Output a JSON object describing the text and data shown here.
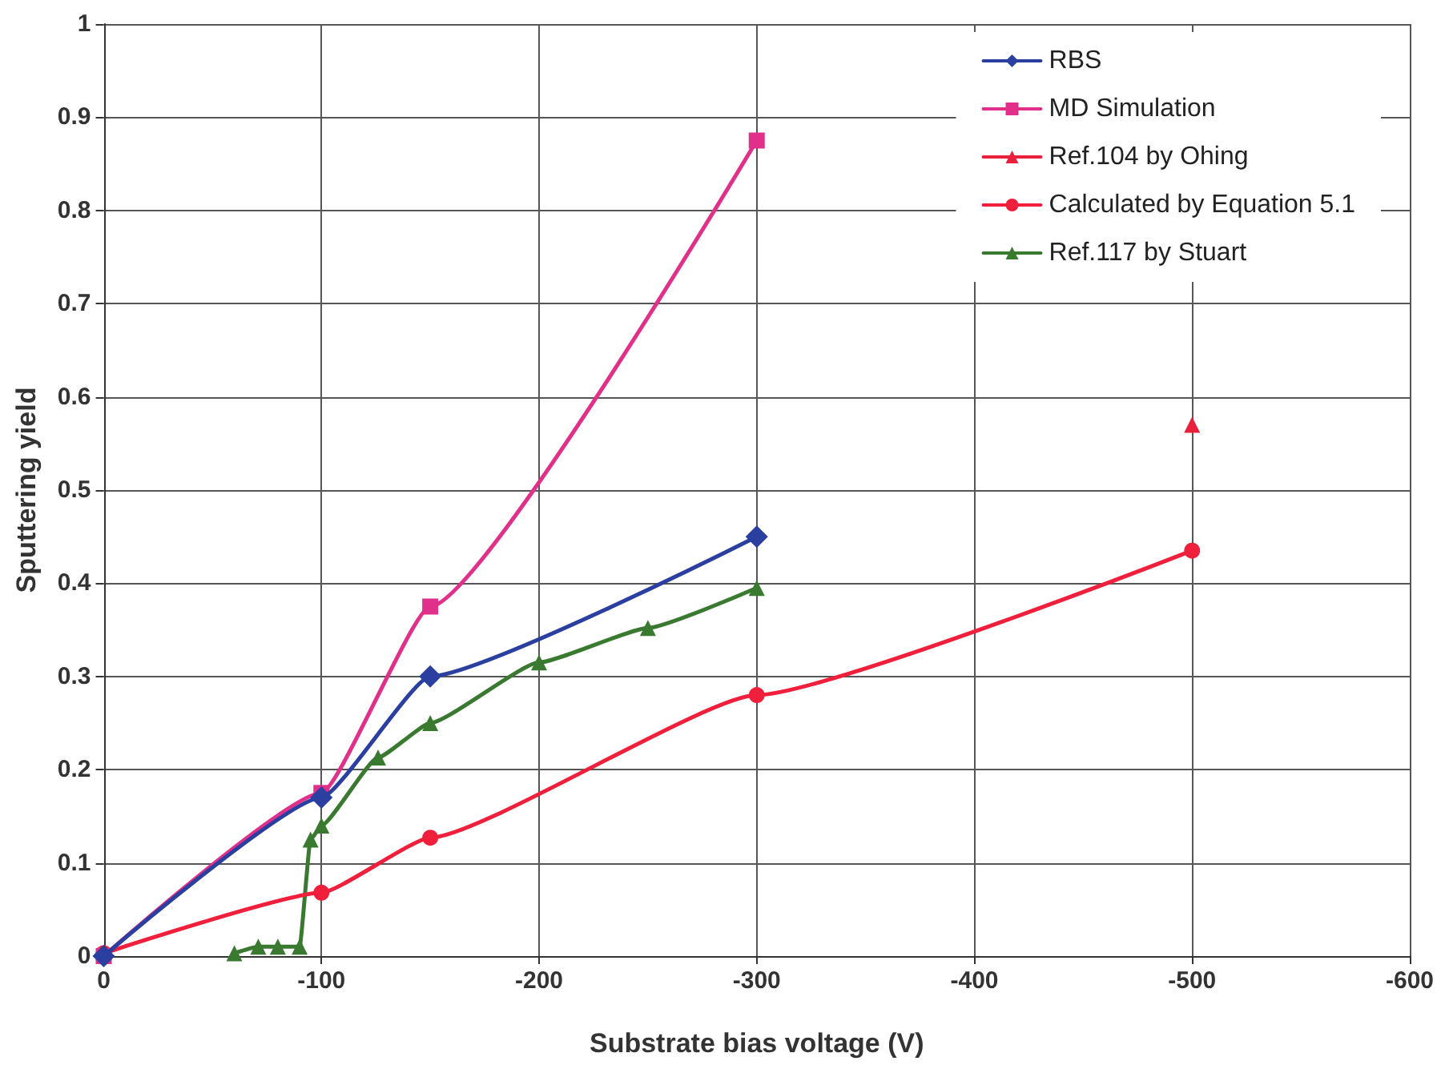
{
  "chart_data": {
    "type": "line",
    "xlabel": "Substrate bias voltage (V)",
    "ylabel": "Sputtering yield",
    "xlim": [
      0,
      -600
    ],
    "xticks": [
      0,
      -100,
      -200,
      -300,
      -400,
      -500,
      -600
    ],
    "ylim": [
      0,
      1
    ],
    "yticks": [
      0,
      0.1,
      0.2,
      0.3,
      0.4,
      0.5,
      0.6,
      0.7,
      0.8,
      0.9,
      1
    ],
    "grid": true,
    "legend": "top right",
    "series": [
      {
        "name": "RBS",
        "color": "#2a3fa0",
        "marker": "diamond",
        "x": [
          0,
          -100,
          -150,
          -300
        ],
        "values": [
          0,
          0.17,
          0.3,
          0.45
        ]
      },
      {
        "name": "MD Simulation",
        "color": "#e0308a",
        "marker": "square",
        "x": [
          0,
          -100,
          -150,
          -300
        ],
        "values": [
          0,
          0.175,
          0.375,
          0.875
        ]
      },
      {
        "name": "Ref.104 by Ohing",
        "color": "#e8203c",
        "marker": "triangle",
        "x": [
          -500
        ],
        "values": [
          0.57
        ]
      },
      {
        "name": "Calculated by Equation 5.1",
        "color": "#f0203c",
        "marker": "circle",
        "x": [
          0,
          -100,
          -150,
          -300,
          -500
        ],
        "values": [
          0.003,
          0.068,
          0.127,
          0.28,
          0.435
        ]
      },
      {
        "name": "Ref.117 by Stuart",
        "color": "#3a7a30",
        "marker": "triangle",
        "x": [
          -60,
          -71,
          -80,
          -90,
          -95,
          -100,
          -126,
          -150,
          -200,
          -250,
          -300
        ],
        "values": [
          0.003,
          0.01,
          0.01,
          0.01,
          0.125,
          0.14,
          0.213,
          0.25,
          0.315,
          0.352,
          0.395
        ]
      }
    ]
  }
}
